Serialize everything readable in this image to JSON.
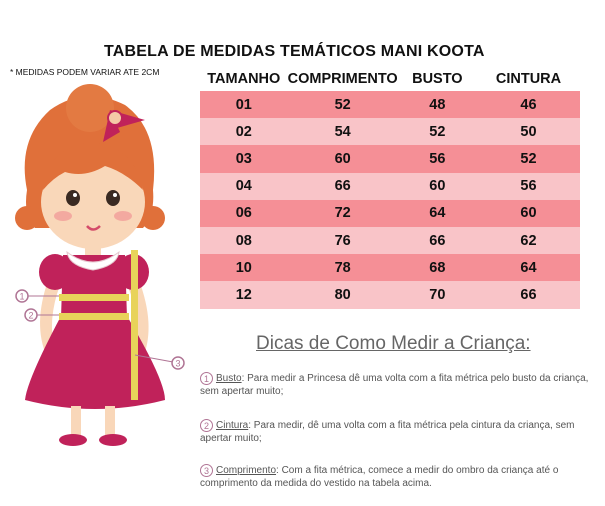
{
  "title": "TABELA DE MEDIDAS TEMÁTICOS MANI KOOTA",
  "note": "* MEDIDAS PODEM VARIAR ATE 2CM",
  "table": {
    "headers": [
      "TAMANHO",
      "COMPRIMENTO",
      "BUSTO",
      "CINTURA"
    ],
    "rows": [
      [
        "01",
        "52",
        "48",
        "46"
      ],
      [
        "02",
        "54",
        "52",
        "50"
      ],
      [
        "03",
        "60",
        "56",
        "52"
      ],
      [
        "04",
        "66",
        "60",
        "56"
      ],
      [
        "06",
        "72",
        "64",
        "60"
      ],
      [
        "08",
        "76",
        "66",
        "62"
      ],
      [
        "10",
        "78",
        "68",
        "64"
      ],
      [
        "12",
        "80",
        "70",
        "66"
      ]
    ]
  },
  "illustration": {
    "markers": [
      "1",
      "2",
      "3"
    ]
  },
  "tips": {
    "title": "Dicas de Como Medir a Criança:",
    "items": [
      {
        "num": "1",
        "term": "Busto",
        "text": ": Para medir a Princesa dê uma volta com a fita métrica pelo busto da criança, sem apertar muito;"
      },
      {
        "num": "2",
        "term": "Cintura",
        "text": ": Para medir, dê uma volta com a fita métrica pela cintura da criança, sem apertar muito;"
      },
      {
        "num": "3",
        "term": "Comprimento",
        "text": ": Com a fita métrica, comece a medir do ombro da criança até o comprimento da medida do vestido na tabela acima."
      }
    ]
  },
  "colors": {
    "row_dark": "#f58f96",
    "row_light": "#f9c4c8",
    "dress": "#c0225a",
    "hair": "#e0703a",
    "tape": "#e8d35a"
  }
}
